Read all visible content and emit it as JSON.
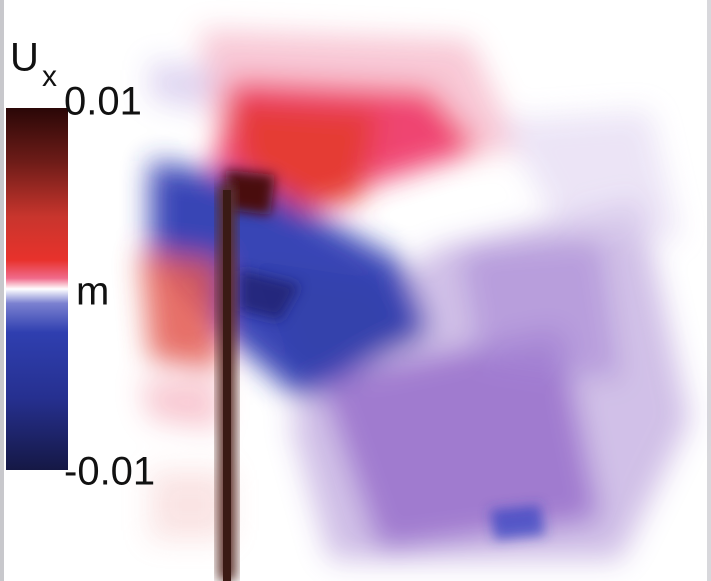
{
  "colorbar": {
    "label": "U",
    "subscript": "x",
    "max": 0.01,
    "unit": "m",
    "min": -0.01
  }
}
